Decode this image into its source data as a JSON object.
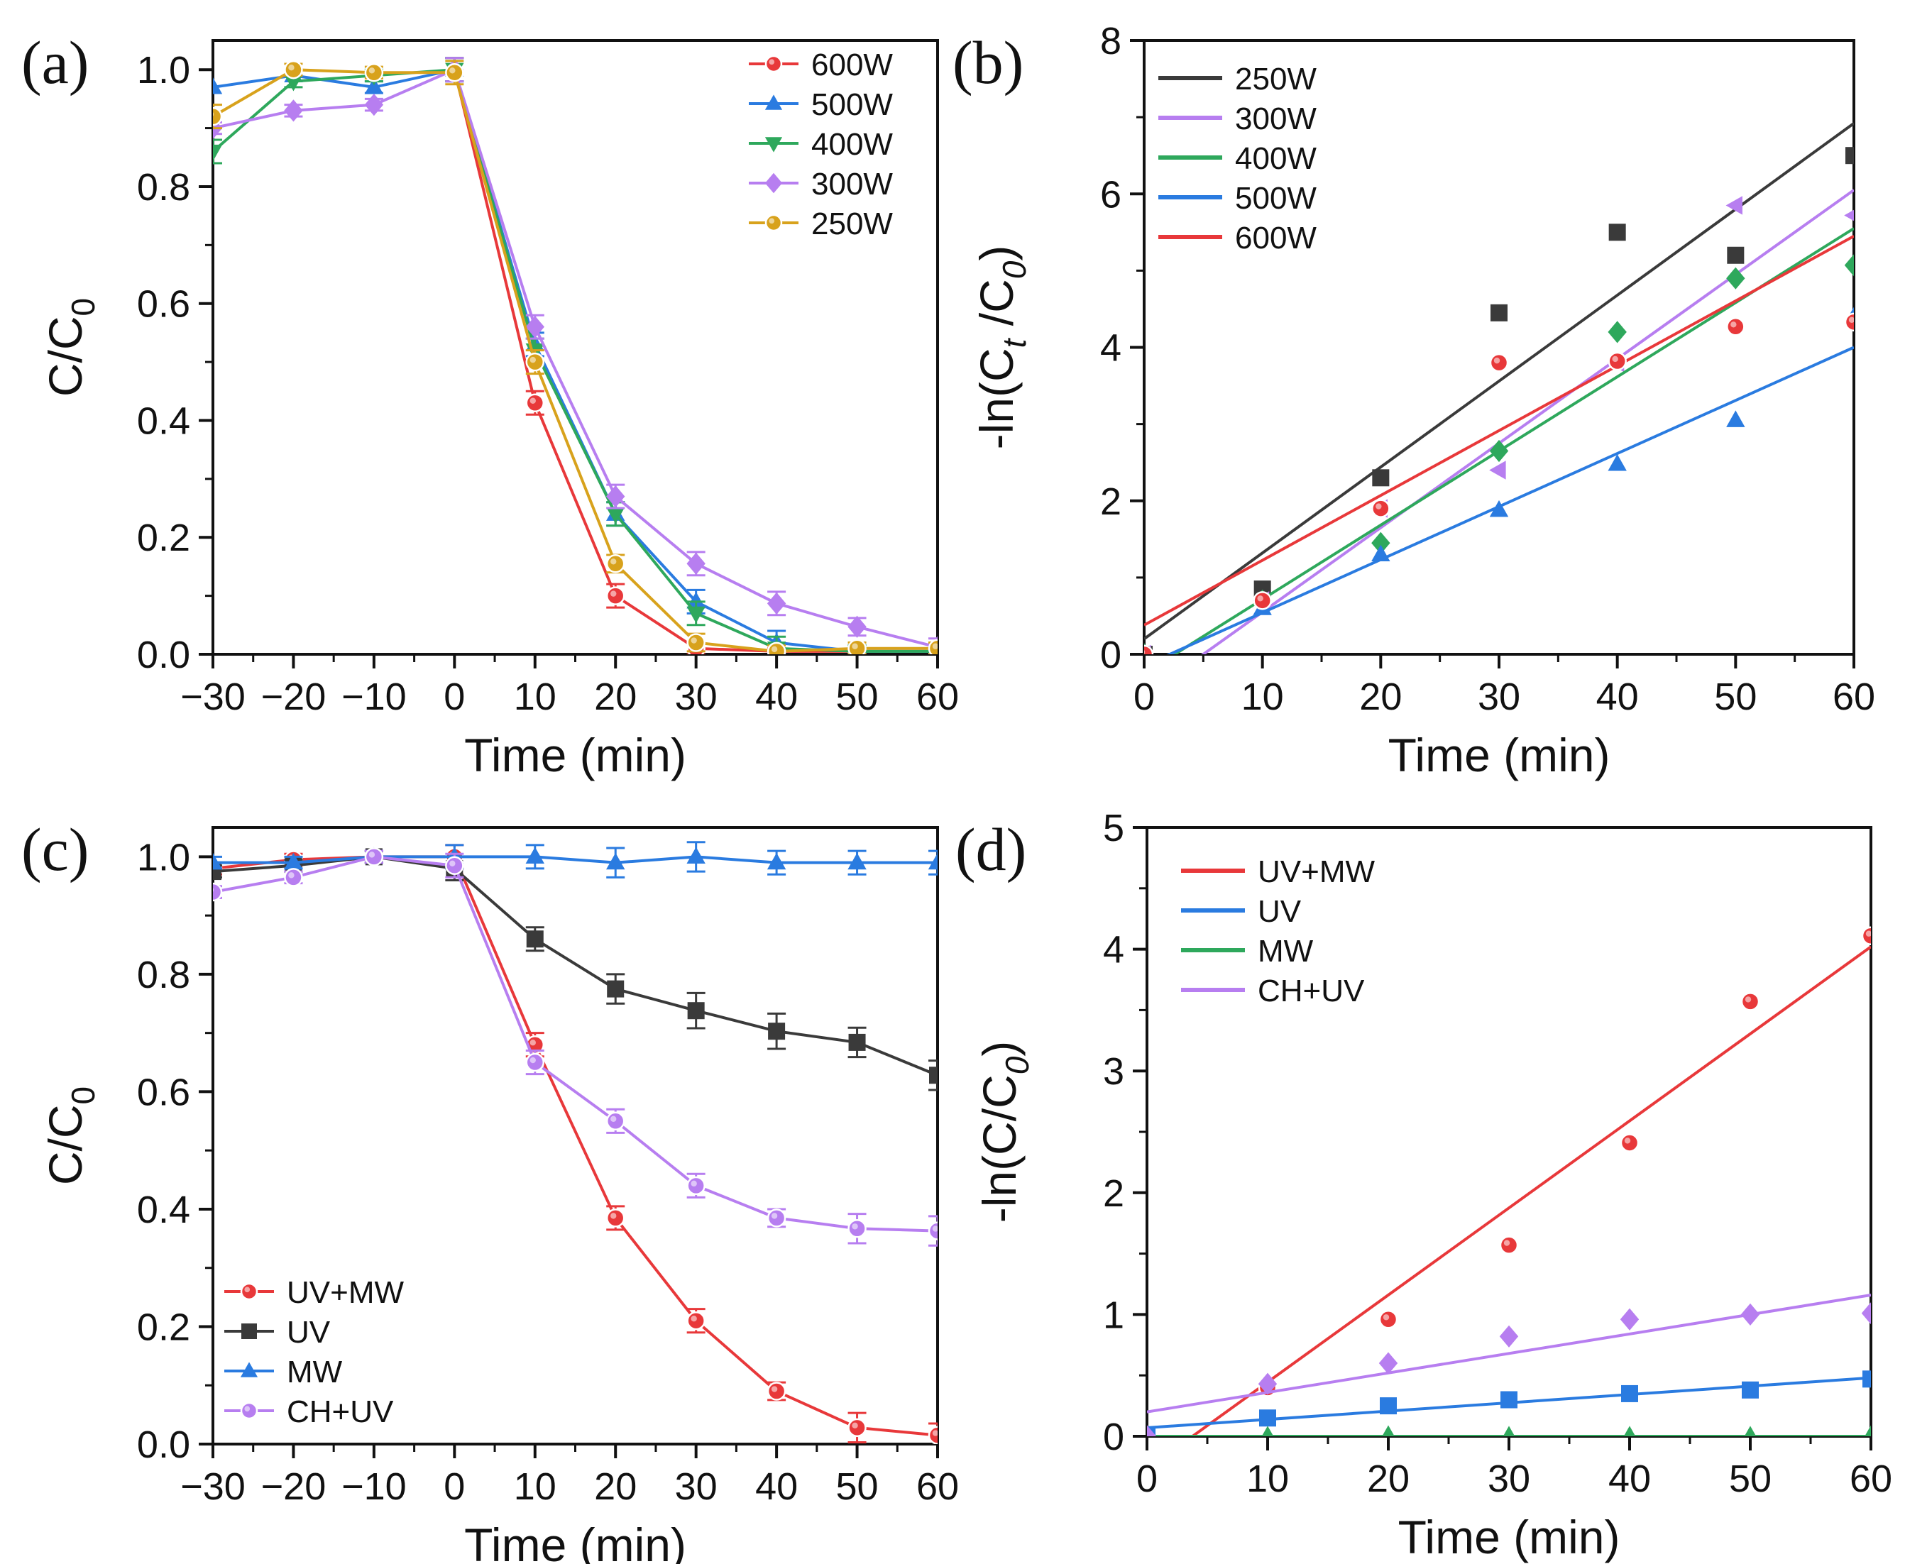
{
  "chart_data": [
    {
      "panel": "(a)",
      "type": "line",
      "xlabel": "Time (min)",
      "ylabel": "C/C",
      "ylabel_sub": "0",
      "xlim": [
        -30,
        60
      ],
      "ylim": [
        0,
        1.05
      ],
      "xticks": [
        "−30",
        "−20",
        "−10",
        "0",
        "10",
        "20",
        "30",
        "40",
        "50",
        "60"
      ],
      "yticks": [
        "0.0",
        "0.2",
        "0.4",
        "0.6",
        "0.8",
        "1.0"
      ],
      "x": [
        -30,
        -20,
        -10,
        0,
        10,
        20,
        30,
        40,
        50,
        60
      ],
      "legend_position": "top-right",
      "series": [
        {
          "name": "600W",
          "color": "#e8383a",
          "marker": "circle",
          "values": [
            null,
            null,
            null,
            1.0,
            0.43,
            0.1,
            0.01,
            0.005,
            0.005,
            0.005
          ],
          "errors": [
            0,
            0,
            0,
            0.02,
            0.02,
            0.02,
            0.01,
            0.005,
            0.005,
            0.005
          ]
        },
        {
          "name": "500W",
          "color": "#2a7be0",
          "marker": "triangle-up",
          "values": [
            0.97,
            0.99,
            0.97,
            1.0,
            0.53,
            0.24,
            0.09,
            0.02,
            0.005,
            0.005
          ],
          "errors": [
            0,
            0,
            0.01,
            0.02,
            0.02,
            0.02,
            0.02,
            0.02,
            0.01,
            0.01
          ]
        },
        {
          "name": "400W",
          "color": "#2ea85c",
          "marker": "triangle-down",
          "values": [
            0.86,
            0.98,
            0.99,
            1.0,
            0.52,
            0.24,
            0.07,
            0.01,
            0.005,
            0.005
          ],
          "errors": [
            0.02,
            0.01,
            0.01,
            0.02,
            0.02,
            0.02,
            0.02,
            0.02,
            0.01,
            0.01
          ]
        },
        {
          "name": "300W",
          "color": "#b77ef0",
          "marker": "diamond",
          "values": [
            0.9,
            0.93,
            0.94,
            1.0,
            0.56,
            0.27,
            0.155,
            0.087,
            0.047,
            0.012
          ],
          "errors": [
            0.01,
            0.01,
            0.01,
            0.02,
            0.02,
            0.02,
            0.02,
            0.02,
            0.015,
            0.015
          ]
        },
        {
          "name": "250W",
          "color": "#d8a21c",
          "marker": "circle",
          "values": [
            0.92,
            1.0,
            0.995,
            0.995,
            0.5,
            0.155,
            0.02,
            0.005,
            0.01,
            0.01
          ],
          "errors": [
            0.02,
            0.01,
            0.01,
            0.02,
            0.02,
            0.015,
            0.015,
            0.01,
            0.01,
            0.01
          ]
        }
      ]
    },
    {
      "panel": "(b)",
      "type": "scatter",
      "xlabel": "Time (min)",
      "ylabel": "-ln(C",
      "ylabel_sub1": "t",
      "ylabel_mid": " /C",
      "ylabel_sub2": "0",
      "ylabel_end": ")",
      "xlim": [
        0,
        60
      ],
      "ylim": [
        0,
        8
      ],
      "xticks": [
        "0",
        "10",
        "20",
        "30",
        "40",
        "50",
        "60"
      ],
      "yticks": [
        "0",
        "2",
        "4",
        "6",
        "8"
      ],
      "x": [
        0,
        10,
        20,
        30,
        40,
        50,
        60
      ],
      "legend_position": "top-left",
      "series": [
        {
          "name": "250W",
          "color": "#3a3a3a",
          "marker": "square",
          "values": [
            0.0,
            0.85,
            2.3,
            4.45,
            5.5,
            5.2,
            6.5
          ],
          "fit": [
            0.2,
            6.92
          ]
        },
        {
          "name": "300W",
          "color": "#b77ef0",
          "marker": "triangle-left",
          "values": [
            0.0,
            0.7,
            1.9,
            2.4,
            3.8,
            5.85,
            5.72
          ],
          "fit": [
            -0.55,
            6.05
          ]
        },
        {
          "name": "400W",
          "color": "#2ea85c",
          "marker": "diamond",
          "values": [
            0.0,
            0.7,
            1.45,
            2.65,
            4.2,
            4.9,
            5.07
          ],
          "fit": [
            -0.25,
            5.55
          ]
        },
        {
          "name": "500W",
          "color": "#2a7be0",
          "marker": "triangle-up",
          "values": [
            0.0,
            0.6,
            1.3,
            1.88,
            2.48,
            3.05,
            4.4
          ],
          "fit": [
            -0.15,
            4.0
          ]
        },
        {
          "name": "600W",
          "color": "#e8383a",
          "marker": "circle",
          "values": [
            0.0,
            0.7,
            1.9,
            3.8,
            3.82,
            4.27,
            4.33
          ],
          "fit": [
            0.38,
            5.45
          ]
        }
      ]
    },
    {
      "panel": "(c)",
      "type": "line",
      "xlabel": "Time (min)",
      "ylabel": "C/C",
      "ylabel_sub": "0",
      "xlim": [
        -30,
        60
      ],
      "ylim": [
        0,
        1.05
      ],
      "xticks": [
        "−30",
        "−20",
        "−10",
        "0",
        "10",
        "20",
        "30",
        "40",
        "50",
        "60"
      ],
      "yticks": [
        "0.0",
        "0.2",
        "0.4",
        "0.6",
        "0.8",
        "1.0"
      ],
      "x": [
        -30,
        -20,
        -10,
        0,
        10,
        20,
        30,
        40,
        50,
        60
      ],
      "legend_position": "bottom-left",
      "series": [
        {
          "name": "UV+MW",
          "color": "#e8383a",
          "marker": "circle",
          "values": [
            0.98,
            0.995,
            1.0,
            1.0,
            0.68,
            0.385,
            0.21,
            0.09,
            0.028,
            0.015
          ],
          "errors": [
            0.01,
            0.01,
            0.01,
            0.02,
            0.02,
            0.02,
            0.02,
            0.015,
            0.025,
            0.02
          ]
        },
        {
          "name": "UV",
          "color": "#3a3a3a",
          "marker": "square",
          "values": [
            0.975,
            0.985,
            1.0,
            0.98,
            0.86,
            0.775,
            0.738,
            0.703,
            0.684,
            0.628
          ],
          "errors": [
            0.01,
            0.01,
            0.01,
            0.02,
            0.02,
            0.025,
            0.03,
            0.03,
            0.025,
            0.025
          ]
        },
        {
          "name": "MW",
          "color": "#2a7be0",
          "marker": "triangle-up",
          "values": [
            0.99,
            0.99,
            1.0,
            1.0,
            1.0,
            0.99,
            1.0,
            0.99,
            0.99,
            0.99
          ],
          "errors": [
            0.01,
            0.01,
            0.01,
            0.02,
            0.02,
            0.025,
            0.025,
            0.02,
            0.02,
            0.02
          ]
        },
        {
          "name": "CH+UV",
          "color": "#b77ef0",
          "marker": "circle",
          "values": [
            0.94,
            0.965,
            1.0,
            0.985,
            0.65,
            0.55,
            0.44,
            0.385,
            0.367,
            0.363
          ],
          "errors": [
            0.01,
            0.01,
            0.01,
            0.02,
            0.02,
            0.02,
            0.02,
            0.015,
            0.025,
            0.025
          ]
        }
      ]
    },
    {
      "panel": "(d)",
      "type": "scatter",
      "xlabel": "Time (min)",
      "ylabel": "-ln(C/C",
      "ylabel_sub": "0",
      "ylabel_end": ")",
      "xlim": [
        0,
        60
      ],
      "ylim": [
        0,
        5
      ],
      "xticks": [
        "0",
        "10",
        "20",
        "30",
        "40",
        "50",
        "60"
      ],
      "yticks": [
        "0",
        "1",
        "2",
        "3",
        "4",
        "5"
      ],
      "x": [
        0,
        10,
        20,
        30,
        40,
        50,
        60
      ],
      "legend_position": "top-left",
      "series": [
        {
          "name": "UV+MW",
          "color": "#e8383a",
          "marker": "circle",
          "values": [
            0.0,
            0.4,
            0.96,
            1.57,
            2.41,
            3.57,
            4.11
          ],
          "fit": [
            -0.27,
            4.02
          ]
        },
        {
          "name": "UV",
          "color": "#2a7be0",
          "marker": "square",
          "values": [
            0.0,
            0.15,
            0.25,
            0.3,
            0.35,
            0.38,
            0.47
          ],
          "fit": [
            0.07,
            0.48
          ]
        },
        {
          "name": "MW",
          "color": "#2ea85c",
          "marker": "triangle-up",
          "values": [
            0.0,
            0.005,
            0.01,
            0.005,
            0.005,
            0.005,
            0.01
          ],
          "fit": [
            0.0,
            0.0
          ]
        },
        {
          "name": "CH+UV",
          "color": "#b77ef0",
          "marker": "diamond",
          "values": [
            0.0,
            0.43,
            0.6,
            0.82,
            0.96,
            1.0,
            1.01
          ],
          "fit": [
            0.2,
            1.16
          ]
        }
      ]
    }
  ]
}
